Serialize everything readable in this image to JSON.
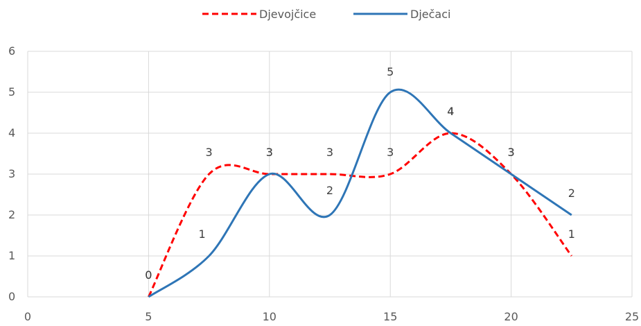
{
  "chart_data": {
    "type": "scatter",
    "title": "",
    "xlabel": "",
    "ylabel": "",
    "xlim": [
      0,
      25
    ],
    "ylim": [
      0,
      6
    ],
    "x_ticks": [
      0,
      5,
      10,
      15,
      20,
      25
    ],
    "y_ticks": [
      0,
      1,
      2,
      3,
      4,
      5,
      6
    ],
    "grid": true,
    "smooth_lines": true,
    "legend_position": "top",
    "series": [
      {
        "name": "Djevojčice",
        "color": "#ff0000",
        "line_style": "dashed",
        "points": [
          {
            "x": 5,
            "y": 0
          },
          {
            "x": 7.5,
            "y": 3
          },
          {
            "x": 10,
            "y": 3
          },
          {
            "x": 12.5,
            "y": 3
          },
          {
            "x": 15,
            "y": 3
          },
          {
            "x": 17.5,
            "y": 4
          },
          {
            "x": 20,
            "y": 3
          },
          {
            "x": 22.5,
            "y": 1
          }
        ]
      },
      {
        "name": "Dječaci",
        "color": "#2e75b6",
        "line_style": "solid",
        "points": [
          {
            "x": 5,
            "y": 0
          },
          {
            "x": 7.5,
            "y": 1
          },
          {
            "x": 10,
            "y": 3
          },
          {
            "x": 12.5,
            "y": 2
          },
          {
            "x": 15,
            "y": 5
          },
          {
            "x": 17.5,
            "y": 4
          },
          {
            "x": 20,
            "y": 3
          },
          {
            "x": 22.5,
            "y": 2
          }
        ]
      }
    ]
  }
}
